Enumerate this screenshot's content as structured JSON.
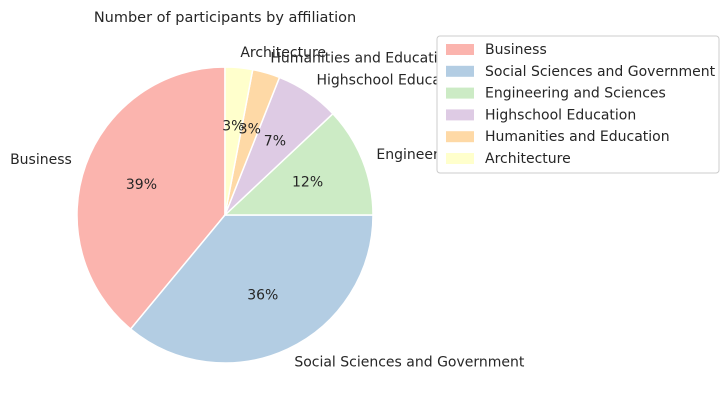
{
  "chart_data": {
    "type": "pie",
    "title": "Number of participants by affiliation",
    "categories": [
      "Business",
      "Social Sciences and Government",
      "Engineering and Sciences",
      "Highschool Education",
      "Humanities and Education",
      "Architecture"
    ],
    "values": [
      39,
      36,
      12,
      7,
      3,
      3
    ],
    "percent_labels": [
      "39%",
      "36%",
      "12%",
      "7%",
      "3%",
      "3%"
    ],
    "colors": [
      "#fbb4ae",
      "#b3cde3",
      "#ccebc5",
      "#decbe4",
      "#fed9a6",
      "#ffffcc"
    ],
    "start_angle_deg": 90,
    "direction": "counterclockwise",
    "legend": {
      "placement": "upper-right, outside axes",
      "entries": [
        "Business",
        "Social Sciences and Government",
        "Engineering and Sciences",
        "Highschool Education",
        "Humanities and Education",
        "Architecture"
      ]
    }
  }
}
